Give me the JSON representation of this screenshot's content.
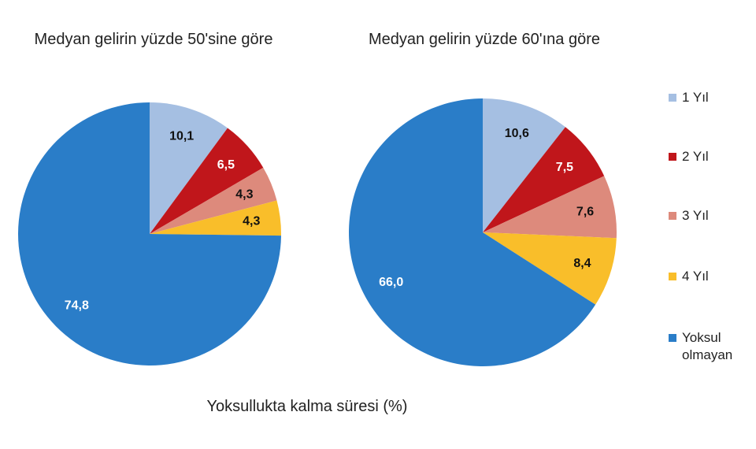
{
  "caption": "Yoksullukta kalma süresi (%)",
  "legend": {
    "names": [
      "1  Yıl",
      "2  Yıl",
      "3  Yıl",
      "4  Yıl",
      "Yoksul olmayan"
    ],
    "colors": [
      "#a5bfe2",
      "#c0161b",
      "#dd8a7c",
      "#f9be2a",
      "#2a7dc8"
    ],
    "label_colors": [
      "#111111",
      "#ffffff",
      "#111111",
      "#111111",
      "#ffffff"
    ]
  },
  "chart_data": [
    {
      "type": "pie",
      "title": "Medyan gelirin yüzde 50'sine göre",
      "values": [
        10.1,
        6.5,
        4.3,
        4.3,
        74.8
      ],
      "value_labels": [
        "10,1",
        "6,5",
        "4,3",
        "4,3",
        "74,8"
      ]
    },
    {
      "type": "pie",
      "title": "Medyan gelirin yüzde 60'ına göre",
      "values": [
        10.6,
        7.5,
        7.6,
        8.4,
        66.0
      ],
      "value_labels": [
        "10,6",
        "7,5",
        "7,6",
        "8,4",
        "66,0"
      ]
    }
  ]
}
